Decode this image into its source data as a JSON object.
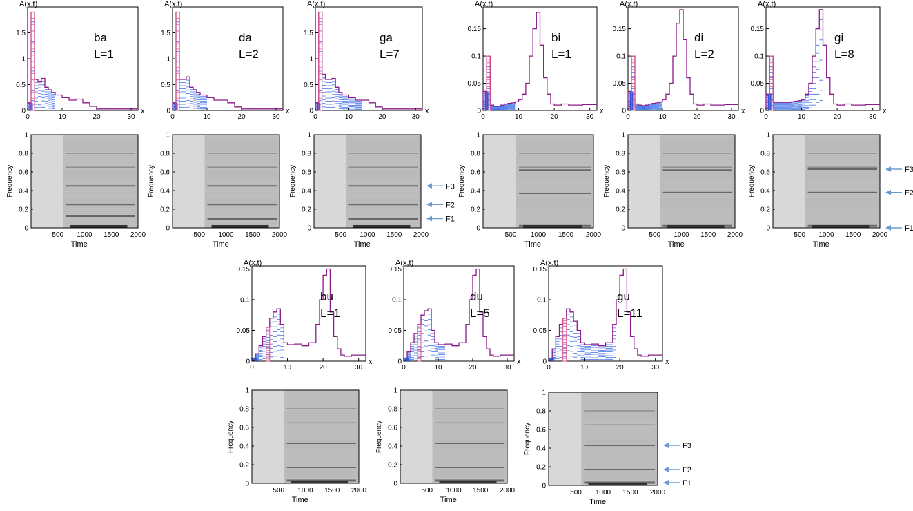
{
  "common": {
    "hist_ylabel": "A(x,t)",
    "hist_xlabel": "x",
    "spec_ylabel": "Frequency",
    "spec_xlabel": "Time",
    "formant_labels": [
      "F1",
      "F2",
      "F3"
    ]
  },
  "chart_data": [
    {
      "type": "line",
      "syllable": "ba",
      "level_label": "L=1",
      "xlim": [
        0,
        32
      ],
      "ylim": [
        0,
        2
      ],
      "xticks": [
        0,
        10,
        20,
        30
      ],
      "yticks": [
        0,
        0.5,
        1,
        1.5
      ],
      "series": [
        {
          "x": [
            0,
            1,
            2,
            3,
            4,
            5,
            6,
            7,
            8,
            10,
            12,
            14,
            16,
            18,
            20,
            22,
            24,
            26,
            28,
            30,
            32
          ],
          "values": [
            0,
            0.15,
            1.9,
            0.6,
            0.55,
            0.62,
            0.45,
            0.4,
            0.35,
            0.3,
            0.25,
            0.2,
            0.22,
            0.15,
            0.08,
            0.03,
            0.03,
            0.03,
            0.03,
            0.03,
            0.03
          ]
        }
      ],
      "evolution_extent_x": 1
    },
    {
      "type": "line",
      "syllable": "da",
      "level_label": "L=2",
      "xlim": [
        0,
        32
      ],
      "ylim": [
        0,
        2
      ],
      "xticks": [
        0,
        10,
        20,
        30
      ],
      "yticks": [
        0,
        0.5,
        1,
        1.5
      ],
      "series": [
        {
          "x": [
            0,
            1,
            2,
            3,
            4,
            5,
            6,
            7,
            8,
            10,
            12,
            14,
            16,
            18,
            20,
            22,
            24,
            26,
            28,
            30,
            32
          ],
          "values": [
            0,
            0.15,
            1.9,
            0.6,
            0.6,
            0.65,
            0.45,
            0.4,
            0.35,
            0.3,
            0.25,
            0.2,
            0.2,
            0.15,
            0.07,
            0.03,
            0.03,
            0.03,
            0.03,
            0.03,
            0.03
          ]
        }
      ],
      "evolution_extent_x": 2
    },
    {
      "type": "line",
      "syllable": "ga",
      "level_label": "L=7",
      "xlim": [
        0,
        32
      ],
      "ylim": [
        0,
        2
      ],
      "xticks": [
        0,
        10,
        20,
        30
      ],
      "yticks": [
        0,
        0.5,
        1,
        1.5
      ],
      "series": [
        {
          "x": [
            0,
            1,
            2,
            3,
            4,
            5,
            6,
            7,
            8,
            10,
            12,
            14,
            16,
            18,
            20,
            22,
            24,
            26,
            28,
            30,
            32
          ],
          "values": [
            0,
            0.15,
            1.9,
            0.7,
            0.6,
            0.6,
            0.62,
            0.45,
            0.35,
            0.3,
            0.25,
            0.2,
            0.2,
            0.15,
            0.07,
            0.03,
            0.03,
            0.03,
            0.03,
            0.03,
            0.03
          ]
        }
      ],
      "evolution_extent_x": 7,
      "formant_arrows": {
        "F3": 0.45,
        "F2": 0.25,
        "F1": 0.1
      }
    },
    {
      "type": "line",
      "syllable": "bi",
      "level_label": "L=1",
      "xlim": [
        0,
        32
      ],
      "ylim": [
        0,
        0.19
      ],
      "xticks": [
        0,
        10,
        20,
        30
      ],
      "yticks": [
        0,
        0.05,
        0.1,
        0.15
      ],
      "series": [
        {
          "x": [
            0,
            1,
            2,
            3,
            4,
            5,
            6,
            7,
            8,
            9,
            10,
            11,
            12,
            13,
            14,
            15,
            16,
            17,
            18,
            19,
            20,
            22,
            24,
            26,
            28,
            30,
            32
          ],
          "values": [
            0,
            0.035,
            0.1,
            0.01,
            0.008,
            0.008,
            0.01,
            0.012,
            0.013,
            0.014,
            0.016,
            0.02,
            0.03,
            0.05,
            0.1,
            0.15,
            0.18,
            0.12,
            0.06,
            0.03,
            0.012,
            0.01,
            0.012,
            0.01,
            0.01,
            0.011,
            0.011
          ]
        }
      ],
      "evolution_extent_x": 1
    },
    {
      "type": "line",
      "syllable": "di",
      "level_label": "L=2",
      "xlim": [
        0,
        32
      ],
      "ylim": [
        0,
        0.19
      ],
      "xticks": [
        0,
        10,
        20,
        30
      ],
      "yticks": [
        0,
        0.05,
        0.1,
        0.15
      ],
      "series": [
        {
          "x": [
            0,
            1,
            2,
            3,
            4,
            5,
            6,
            7,
            8,
            9,
            10,
            11,
            12,
            13,
            14,
            15,
            16,
            17,
            18,
            19,
            20,
            22,
            24,
            26,
            28,
            30,
            32
          ],
          "values": [
            0,
            0.035,
            0.1,
            0.012,
            0.01,
            0.009,
            0.01,
            0.012,
            0.013,
            0.014,
            0.016,
            0.02,
            0.03,
            0.05,
            0.1,
            0.16,
            0.185,
            0.13,
            0.06,
            0.03,
            0.012,
            0.01,
            0.012,
            0.01,
            0.01,
            0.011,
            0.011
          ]
        }
      ],
      "evolution_extent_x": 2
    },
    {
      "type": "line",
      "syllable": "gi",
      "level_label": "L=8",
      "xlim": [
        0,
        32
      ],
      "ylim": [
        0,
        0.19
      ],
      "xticks": [
        0,
        10,
        20,
        30
      ],
      "yticks": [
        0,
        0.05,
        0.1,
        0.15
      ],
      "series": [
        {
          "x": [
            0,
            1,
            2,
            3,
            4,
            5,
            6,
            7,
            8,
            9,
            10,
            11,
            12,
            13,
            14,
            15,
            16,
            17,
            18,
            19,
            20,
            22,
            24,
            26,
            28,
            30,
            32
          ],
          "values": [
            0,
            0.03,
            0.1,
            0.015,
            0.015,
            0.015,
            0.015,
            0.015,
            0.016,
            0.017,
            0.018,
            0.02,
            0.03,
            0.05,
            0.1,
            0.15,
            0.185,
            0.12,
            0.06,
            0.03,
            0.012,
            0.01,
            0.012,
            0.01,
            0.01,
            0.011,
            0.011
          ]
        }
      ],
      "evolution_extent_x": 8,
      "formant_arrows": {
        "F3": 0.63,
        "F2": 0.38,
        "F1": 0.0
      }
    },
    {
      "type": "line",
      "syllable": "bu",
      "level_label": "L=1",
      "xlim": [
        0,
        32
      ],
      "ylim": [
        0,
        0.155
      ],
      "xticks": [
        0,
        10,
        20,
        30
      ],
      "yticks": [
        0,
        0.05,
        0.1,
        0.15
      ],
      "series": [
        {
          "x": [
            0,
            1,
            2,
            3,
            4,
            5,
            6,
            7,
            8,
            9,
            10,
            12,
            14,
            16,
            18,
            19,
            20,
            21,
            22,
            23,
            24,
            25,
            26,
            28,
            30,
            32
          ],
          "values": [
            0,
            0.005,
            0.012,
            0.025,
            0.04,
            0.055,
            0.07,
            0.08,
            0.085,
            0.06,
            0.03,
            0.027,
            0.028,
            0.025,
            0.03,
            0.06,
            0.1,
            0.14,
            0.15,
            0.08,
            0.04,
            0.02,
            0.01,
            0.008,
            0.01,
            0.01
          ]
        }
      ],
      "evolution_extent_x": 1
    },
    {
      "type": "line",
      "syllable": "du",
      "level_label": "L=5",
      "xlim": [
        0,
        32
      ],
      "ylim": [
        0,
        0.155
      ],
      "xticks": [
        0,
        10,
        20,
        30
      ],
      "yticks": [
        0,
        0.05,
        0.1,
        0.15
      ],
      "series": [
        {
          "x": [
            0,
            1,
            2,
            3,
            4,
            5,
            6,
            7,
            8,
            9,
            10,
            12,
            14,
            16,
            18,
            19,
            20,
            21,
            22,
            23,
            24,
            25,
            26,
            28,
            30,
            32
          ],
          "values": [
            0,
            0.005,
            0.015,
            0.03,
            0.045,
            0.06,
            0.075,
            0.082,
            0.085,
            0.05,
            0.03,
            0.027,
            0.028,
            0.025,
            0.03,
            0.06,
            0.1,
            0.14,
            0.15,
            0.08,
            0.04,
            0.02,
            0.01,
            0.008,
            0.01,
            0.01
          ]
        }
      ],
      "evolution_extent_x": 5
    },
    {
      "type": "line",
      "syllable": "gu",
      "level_label": "L=11",
      "xlim": [
        0,
        32
      ],
      "ylim": [
        0,
        0.155
      ],
      "xticks": [
        0,
        10,
        20,
        30
      ],
      "yticks": [
        0,
        0.05,
        0.1,
        0.15
      ],
      "series": [
        {
          "x": [
            0,
            1,
            2,
            3,
            4,
            5,
            6,
            7,
            8,
            9,
            10,
            12,
            14,
            16,
            18,
            19,
            20,
            21,
            22,
            23,
            24,
            25,
            26,
            28,
            30,
            32
          ],
          "values": [
            0,
            0.005,
            0.02,
            0.04,
            0.06,
            0.07,
            0.085,
            0.08,
            0.065,
            0.05,
            0.03,
            0.027,
            0.028,
            0.025,
            0.03,
            0.06,
            0.1,
            0.14,
            0.15,
            0.08,
            0.04,
            0.02,
            0.01,
            0.008,
            0.01,
            0.01
          ]
        }
      ],
      "evolution_extent_x": 11,
      "formant_arrows": {
        "F3": 0.43,
        "F2": 0.17,
        "F1": 0.03
      }
    }
  ],
  "spectrograms": [
    {
      "syllable": "ba",
      "type": "heatmap",
      "xlim": [
        0,
        2000
      ],
      "ylim": [
        0,
        1
      ],
      "xticks": [
        500,
        1000,
        1500,
        2000
      ],
      "yticks": [
        0,
        0.2,
        0.4,
        0.6,
        0.8,
        1
      ],
      "onset_time": 600,
      "formants": [
        0.13,
        0.25,
        0.45
      ]
    },
    {
      "syllable": "da",
      "type": "heatmap",
      "xlim": [
        0,
        2000
      ],
      "ylim": [
        0,
        1
      ],
      "xticks": [
        500,
        1000,
        1500,
        2000
      ],
      "yticks": [
        0,
        0.2,
        0.4,
        0.6,
        0.8,
        1
      ],
      "onset_time": 600,
      "formants": [
        0.1,
        0.25,
        0.45
      ]
    },
    {
      "syllable": "ga",
      "type": "heatmap",
      "xlim": [
        0,
        2000
      ],
      "ylim": [
        0,
        1
      ],
      "xticks": [
        500,
        1000,
        1500,
        2000
      ],
      "yticks": [
        0,
        0.2,
        0.4,
        0.6,
        0.8,
        1
      ],
      "onset_time": 600,
      "formants": [
        0.1,
        0.25,
        0.45
      ]
    },
    {
      "syllable": "bi",
      "type": "heatmap",
      "xlim": [
        0,
        2000
      ],
      "ylim": [
        0,
        1
      ],
      "xticks": [
        500,
        1000,
        1500,
        2000
      ],
      "yticks": [
        0,
        0.2,
        0.4,
        0.6,
        0.8,
        1
      ],
      "onset_time": 600,
      "formants": [
        0.02,
        0.37,
        0.62
      ]
    },
    {
      "syllable": "di",
      "type": "heatmap",
      "xlim": [
        0,
        2000
      ],
      "ylim": [
        0,
        1
      ],
      "xticks": [
        500,
        1000,
        1500,
        2000
      ],
      "yticks": [
        0,
        0.2,
        0.4,
        0.6,
        0.8,
        1
      ],
      "onset_time": 600,
      "formants": [
        0.02,
        0.38,
        0.62
      ]
    },
    {
      "syllable": "gi",
      "type": "heatmap",
      "xlim": [
        0,
        2000
      ],
      "ylim": [
        0,
        1
      ],
      "xticks": [
        500,
        1000,
        1500,
        2000
      ],
      "yticks": [
        0,
        0.2,
        0.4,
        0.6,
        0.8,
        1
      ],
      "onset_time": 600,
      "formants": [
        0.02,
        0.38,
        0.63
      ]
    },
    {
      "syllable": "bu",
      "type": "heatmap",
      "xlim": [
        0,
        2000
      ],
      "ylim": [
        0,
        1
      ],
      "xticks": [
        500,
        1000,
        1500,
        2000
      ],
      "yticks": [
        0,
        0.2,
        0.4,
        0.6,
        0.8,
        1
      ],
      "onset_time": 600,
      "formants": [
        0.03,
        0.17,
        0.43
      ]
    },
    {
      "syllable": "du",
      "type": "heatmap",
      "xlim": [
        0,
        2000
      ],
      "ylim": [
        0,
        1
      ],
      "xticks": [
        500,
        1000,
        1500,
        2000
      ],
      "yticks": [
        0,
        0.2,
        0.4,
        0.6,
        0.8,
        1
      ],
      "onset_time": 600,
      "formants": [
        0.03,
        0.17,
        0.43
      ]
    },
    {
      "syllable": "gu",
      "type": "heatmap",
      "xlim": [
        0,
        2000
      ],
      "ylim": [
        0,
        1
      ],
      "xticks": [
        500,
        1000,
        1500,
        2000
      ],
      "yticks": [
        0,
        0.2,
        0.4,
        0.6,
        0.8,
        1
      ],
      "onset_time": 600,
      "formants": [
        0.03,
        0.17,
        0.43
      ]
    }
  ],
  "colors": {
    "histogram_line": "#8b1a89",
    "histogram_top": "#e0508a",
    "evolution_steps": "#3b6ee8",
    "evolution_fill": "#2b55dd",
    "arrow": "#6b9bd1",
    "spectrogram_bg": "#c9c9c9",
    "spectrogram_band": "#5a5a5a"
  }
}
